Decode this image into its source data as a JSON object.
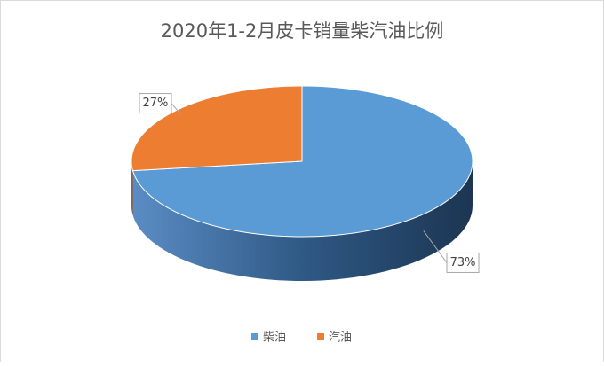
{
  "chart_data": {
    "type": "pie3d",
    "title": "2020年1-2月皮卡销量柴汽油比例",
    "categories": [
      "柴油",
      "汽油"
    ],
    "values": [
      73,
      27
    ],
    "value_labels": [
      "73%",
      "27%"
    ],
    "colors": [
      "#5b9bd5",
      "#ed7d31"
    ],
    "legend": "bottom"
  }
}
